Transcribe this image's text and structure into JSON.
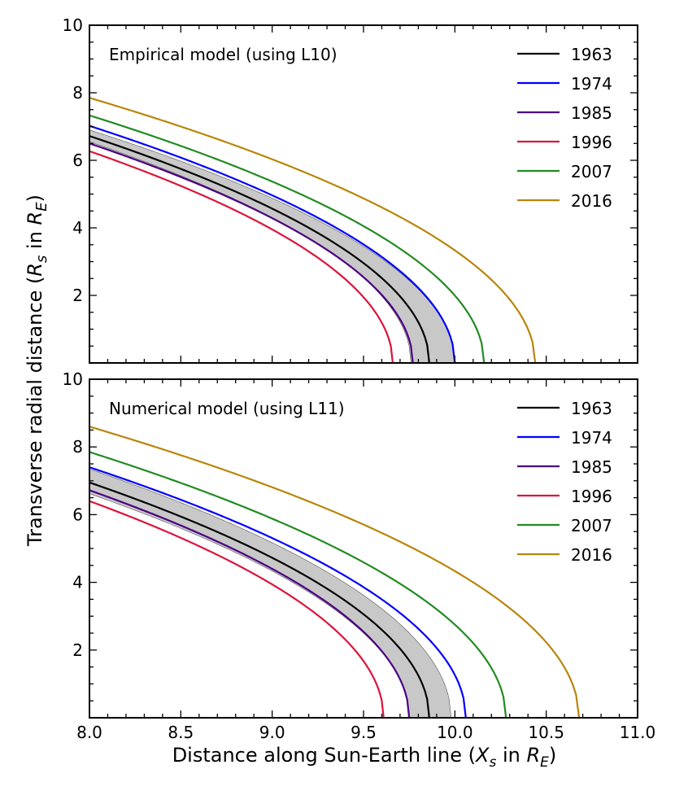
{
  "chart_data": {
    "type": "line",
    "xlabel": "Distance along Sun-Earth line (X_s in R_E)",
    "xlabel_parts": {
      "main": "Distance along Sun-Earth line (",
      "x": "X",
      "x_sub": "s",
      "mid": " in ",
      "r": "R",
      "r_sub": "E",
      "end": ")"
    },
    "ylabel": "Transverse radial distance (R_s in R_E)",
    "ylabel_parts": {
      "main": "Transverse radial distance (",
      "r1": "R",
      "r1_sub": "s",
      "mid": " in ",
      "r2": "R",
      "r2_sub": "E",
      "end": ")"
    },
    "xlim": [
      8.0,
      11.0
    ],
    "ylim": [
      0,
      10
    ],
    "xticks": [
      "8.0",
      "8.5",
      "9.0",
      "9.5",
      "10.0",
      "10.5",
      "11.0"
    ],
    "xtick_values": [
      8.0,
      8.5,
      9.0,
      9.5,
      10.0,
      10.5,
      11.0
    ],
    "yticks": [
      "2",
      "4",
      "6",
      "8",
      "10"
    ],
    "ytick_values": [
      2,
      4,
      6,
      8,
      10
    ],
    "legend_position": "top-right",
    "panels": [
      {
        "title": "Empirical model (using L10)",
        "series": [
          {
            "name": "1963",
            "color": "#000000",
            "y_at_8": 6.72,
            "x_nose": 9.86
          },
          {
            "name": "1974",
            "color": "#0000ff",
            "y_at_8": 7.02,
            "x_nose": 10.0
          },
          {
            "name": "1985",
            "color": "#4b0082",
            "y_at_8": 6.5,
            "x_nose": 9.77
          },
          {
            "name": "1996",
            "color": "#dc143c",
            "y_at_8": 6.27,
            "x_nose": 9.66
          },
          {
            "name": "2007",
            "color": "#228b22",
            "y_at_8": 7.33,
            "x_nose": 10.16
          },
          {
            "name": "2016",
            "color": "#b8860b",
            "y_at_8": 7.85,
            "x_nose": 10.44
          }
        ],
        "band": {
          "lower_y_at_8": 6.55,
          "lower_x_nose": 9.76,
          "upper_y_at_8": 6.9,
          "upper_x_nose": 10.0,
          "color": "#c8c8c8"
        }
      },
      {
        "title": "Numerical model (using L11)",
        "series": [
          {
            "name": "1963",
            "color": "#000000",
            "y_at_8": 6.95,
            "x_nose": 9.86
          },
          {
            "name": "1974",
            "color": "#0000ff",
            "y_at_8": 7.4,
            "x_nose": 10.06
          },
          {
            "name": "1985",
            "color": "#4b0082",
            "y_at_8": 6.72,
            "x_nose": 9.75
          },
          {
            "name": "1996",
            "color": "#dc143c",
            "y_at_8": 6.4,
            "x_nose": 9.61
          },
          {
            "name": "2007",
            "color": "#228b22",
            "y_at_8": 7.85,
            "x_nose": 10.28
          },
          {
            "name": "2016",
            "color": "#b8860b",
            "y_at_8": 8.6,
            "x_nose": 10.68
          }
        ],
        "band": {
          "lower_y_at_8": 6.62,
          "lower_x_nose": 9.75,
          "upper_y_at_8": 7.35,
          "upper_x_nose": 9.98,
          "color": "#c8c8c8"
        }
      }
    ]
  }
}
